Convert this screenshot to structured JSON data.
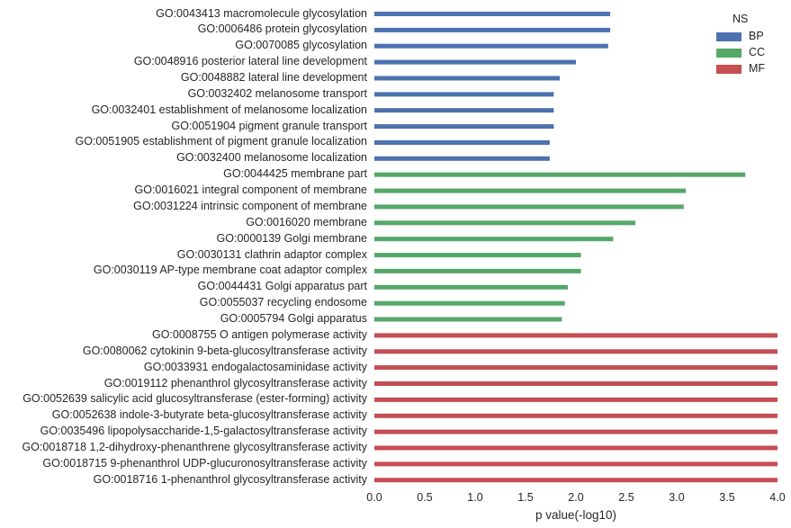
{
  "chart_data": {
    "type": "bar",
    "orientation": "horizontal",
    "xlabel": "p value(-log10)",
    "ylabel": "",
    "xlim": [
      0,
      4.0
    ],
    "xticks": [
      "0.0",
      "0.5",
      "1.0",
      "1.5",
      "2.0",
      "2.5",
      "3.0",
      "3.5",
      "4.0"
    ],
    "grid": false,
    "legend_position": "top-right",
    "legend_title": "NS",
    "series": [
      {
        "name": "BP",
        "color": "#4c72b0"
      },
      {
        "name": "CC",
        "color": "#55a868"
      },
      {
        "name": "MF",
        "color": "#c44e52"
      }
    ],
    "bars": [
      {
        "label": "GO:0043413 macromolecule glycosylation",
        "value": 2.34,
        "group": "BP"
      },
      {
        "label": "GO:0006486 protein glycosylation",
        "value": 2.34,
        "group": "BP"
      },
      {
        "label": "GO:0070085 glycosylation",
        "value": 2.32,
        "group": "BP"
      },
      {
        "label": "GO:0048916 posterior lateral line development",
        "value": 2.0,
        "group": "BP"
      },
      {
        "label": "GO:0048882 lateral line development",
        "value": 1.84,
        "group": "BP"
      },
      {
        "label": "GO:0032402 melanosome transport",
        "value": 1.78,
        "group": "BP"
      },
      {
        "label": "GO:0032401 establishment of melanosome localization",
        "value": 1.78,
        "group": "BP"
      },
      {
        "label": "GO:0051904 pigment granule transport",
        "value": 1.78,
        "group": "BP"
      },
      {
        "label": "GO:0051905 establishment of pigment granule localization",
        "value": 1.74,
        "group": "BP"
      },
      {
        "label": "GO:0032400 melanosome localization",
        "value": 1.74,
        "group": "BP"
      },
      {
        "label": "GO:0044425 membrane part",
        "value": 3.68,
        "group": "CC"
      },
      {
        "label": "GO:0016021 integral component of membrane",
        "value": 3.09,
        "group": "CC"
      },
      {
        "label": "GO:0031224 intrinsic component of membrane",
        "value": 3.07,
        "group": "CC"
      },
      {
        "label": "GO:0016020 membrane",
        "value": 2.59,
        "group": "CC"
      },
      {
        "label": "GO:0000139 Golgi membrane",
        "value": 2.37,
        "group": "CC"
      },
      {
        "label": "GO:0030131 clathrin adaptor complex",
        "value": 2.05,
        "group": "CC"
      },
      {
        "label": "GO:0030119 AP-type membrane coat adaptor complex",
        "value": 2.05,
        "group": "CC"
      },
      {
        "label": "GO:0044431 Golgi apparatus part",
        "value": 1.92,
        "group": "CC"
      },
      {
        "label": "GO:0055037 recycling endosome",
        "value": 1.89,
        "group": "CC"
      },
      {
        "label": "GO:0005794 Golgi apparatus",
        "value": 1.86,
        "group": "CC"
      },
      {
        "label": "GO:0008755 O antigen polymerase activity",
        "value": 4.0,
        "group": "MF"
      },
      {
        "label": "GO:0080062 cytokinin 9-beta-glucosyltransferase activity",
        "value": 4.0,
        "group": "MF"
      },
      {
        "label": "GO:0033931 endogalactosaminidase activity",
        "value": 4.0,
        "group": "MF"
      },
      {
        "label": "GO:0019112 phenanthrol glycosyltransferase activity",
        "value": 4.0,
        "group": "MF"
      },
      {
        "label": "GO:0052639 salicylic acid glucosyltransferase (ester-forming) activity",
        "value": 4.0,
        "group": "MF"
      },
      {
        "label": "GO:0052638 indole-3-butyrate beta-glucosyltransferase activity",
        "value": 4.0,
        "group": "MF"
      },
      {
        "label": "GO:0035496 lipopolysaccharide-1,5-galactosyltransferase activity",
        "value": 4.0,
        "group": "MF"
      },
      {
        "label": "GO:0018718 1,2-dihydroxy-phenanthrene glycosyltransferase activity",
        "value": 4.0,
        "group": "MF"
      },
      {
        "label": "GO:0018715 9-phenanthrol UDP-glucuronosyltransferase activity",
        "value": 4.0,
        "group": "MF"
      },
      {
        "label": "GO:0018716 1-phenanthrol glycosyltransferase activity",
        "value": 4.0,
        "group": "MF"
      }
    ]
  }
}
